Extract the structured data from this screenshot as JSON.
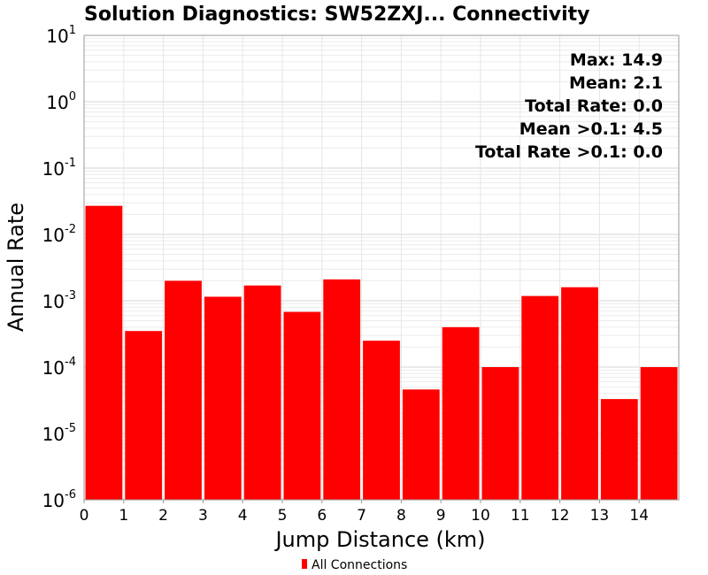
{
  "chart_data": {
    "type": "bar",
    "title": "Solution Diagnostics: SW52ZXJ... Connectivity",
    "xlabel": "Jump Distance (km)",
    "ylabel": "Annual Rate",
    "y_scale": "log",
    "ylim": [
      1e-06,
      10
    ],
    "xlim": [
      0,
      15
    ],
    "y_ticks": [
      {
        "base": "10",
        "exp": "-6"
      },
      {
        "base": "10",
        "exp": "-5"
      },
      {
        "base": "10",
        "exp": "-4"
      },
      {
        "base": "10",
        "exp": "-3"
      },
      {
        "base": "10",
        "exp": "-2"
      },
      {
        "base": "10",
        "exp": "-1"
      },
      {
        "base": "10",
        "exp": "0"
      },
      {
        "base": "10",
        "exp": "1"
      }
    ],
    "x_ticks": [
      "0",
      "1",
      "2",
      "3",
      "4",
      "5",
      "6",
      "7",
      "8",
      "9",
      "10",
      "11",
      "12",
      "13",
      "14"
    ],
    "bins": [
      {
        "x0": 0,
        "x1": 1,
        "value": 0.027
      },
      {
        "x0": 1,
        "x1": 2,
        "value": 0.00035
      },
      {
        "x0": 2,
        "x1": 3,
        "value": 0.002
      },
      {
        "x0": 3,
        "x1": 4,
        "value": 0.00115
      },
      {
        "x0": 4,
        "x1": 5,
        "value": 0.0017
      },
      {
        "x0": 5,
        "x1": 6,
        "value": 0.00068
      },
      {
        "x0": 6,
        "x1": 7,
        "value": 0.0021
      },
      {
        "x0": 7,
        "x1": 8,
        "value": 0.00025
      },
      {
        "x0": 8,
        "x1": 9,
        "value": 4.6e-05
      },
      {
        "x0": 9,
        "x1": 10,
        "value": 0.0004
      },
      {
        "x0": 10,
        "x1": 11,
        "value": 0.0001
      },
      {
        "x0": 11,
        "x1": 12,
        "value": 0.00118
      },
      {
        "x0": 12,
        "x1": 13,
        "value": 0.0016
      },
      {
        "x0": 13,
        "x1": 14,
        "value": 3.3e-05
      },
      {
        "x0": 14,
        "x1": 15,
        "value": 0.0001
      }
    ],
    "stats": [
      "Max: 14.9",
      "Mean: 2.1",
      "Total Rate: 0.0",
      "Mean >0.1: 4.5",
      "Total Rate >0.1: 0.0"
    ],
    "legend": [
      {
        "name": "All Connections",
        "color": "#ff0000"
      }
    ],
    "legend_position": "bottom-center",
    "bar_color": "#ff0000",
    "grid": true
  }
}
